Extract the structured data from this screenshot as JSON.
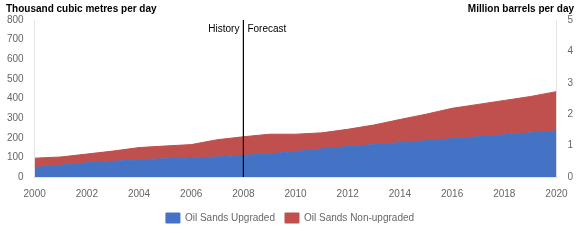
{
  "chart_data": {
    "type": "area",
    "stacked": true,
    "x": [
      2000,
      2001,
      2002,
      2003,
      2004,
      2005,
      2006,
      2007,
      2008,
      2009,
      2010,
      2011,
      2012,
      2013,
      2014,
      2015,
      2016,
      2017,
      2018,
      2019,
      2020
    ],
    "series": [
      {
        "name": "Oil Sands Upgraded",
        "color": "#4472C4",
        "values": [
          48,
          60,
          72,
          80,
          88,
          93,
          97,
          102,
          110,
          118,
          130,
          143,
          155,
          165,
          175,
          185,
          195,
          205,
          215,
          225,
          235
        ]
      },
      {
        "name": "Oil Sands Non-upgraded",
        "color": "#C0504D",
        "values": [
          48,
          42,
          45,
          52,
          62,
          65,
          68,
          88,
          95,
          100,
          88,
          82,
          88,
          100,
          118,
          135,
          155,
          165,
          175,
          185,
          200
        ]
      }
    ],
    "xlim": [
      2000,
      2020
    ],
    "xticks": [
      2000,
      2002,
      2004,
      2006,
      2008,
      2010,
      2012,
      2014,
      2016,
      2018,
      2020
    ],
    "ylim": [
      0,
      800
    ],
    "yticks": [
      0,
      100,
      200,
      300,
      400,
      500,
      600,
      700,
      800
    ],
    "y2lim": [
      0,
      5
    ],
    "y2ticks": [
      0,
      1,
      2,
      3,
      4,
      5
    ],
    "y_label": "Thousand cubic metres per day",
    "y2_label": "Million barrels per day",
    "annotations": [
      {
        "x": 2008,
        "text_left": "History",
        "text_right": "Forecast",
        "color": "#000000"
      }
    ],
    "legend": "bottom",
    "grid": false
  }
}
